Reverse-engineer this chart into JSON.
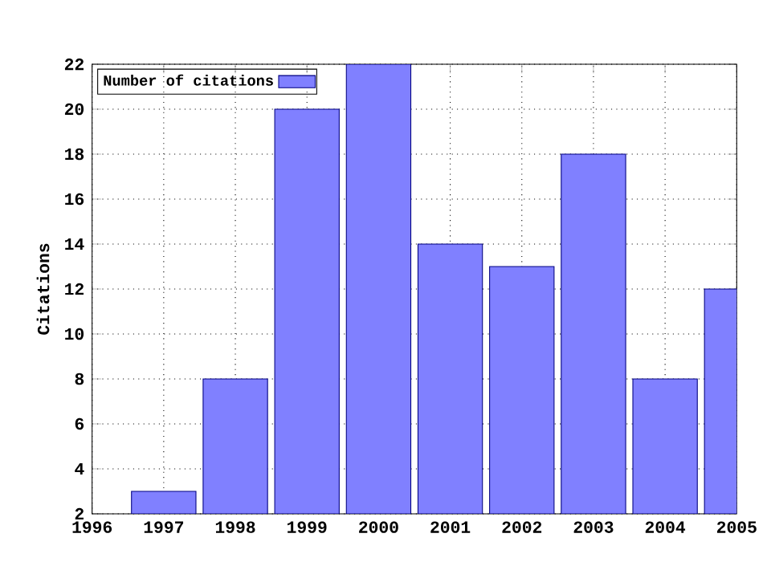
{
  "chart_data": {
    "type": "bar",
    "ylabel": "Citations",
    "x": [
      1997,
      1998,
      1999,
      2000,
      2001,
      2002,
      2003,
      2004,
      2005
    ],
    "series": [
      {
        "name": "Number of citations",
        "color": "#8080ff",
        "values": [
          3,
          8,
          20,
          22,
          14,
          13,
          18,
          8,
          12
        ]
      }
    ],
    "xlim": [
      1996,
      2005
    ],
    "xticks": [
      1996,
      1997,
      1998,
      1999,
      2000,
      2001,
      2002,
      2003,
      2004,
      2005
    ],
    "ylim": [
      2,
      22
    ],
    "yticks": [
      2,
      4,
      6,
      8,
      10,
      12,
      14,
      16,
      18,
      20,
      22
    ],
    "grid": true,
    "legend": "top left"
  }
}
